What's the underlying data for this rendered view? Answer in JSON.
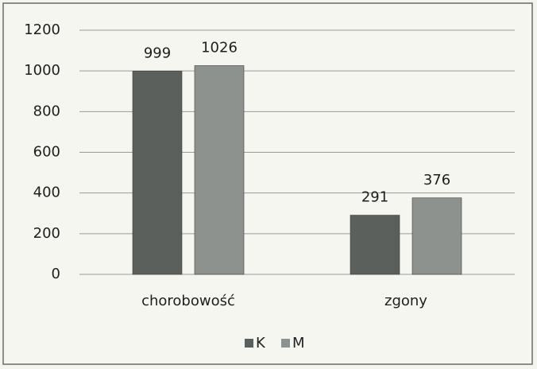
{
  "chart_data": {
    "type": "bar",
    "categories": [
      "chorobowość",
      "zgony"
    ],
    "series": [
      {
        "name": "K",
        "color": "#5c605c",
        "values": [
          999,
          291
        ]
      },
      {
        "name": "M",
        "color": "#8e928e",
        "values": [
          1026,
          376
        ]
      }
    ],
    "ylim": [
      0,
      1200
    ],
    "yticks": [
      0,
      200,
      400,
      600,
      800,
      1000,
      1200
    ],
    "grid": true,
    "legend": "bottom"
  }
}
